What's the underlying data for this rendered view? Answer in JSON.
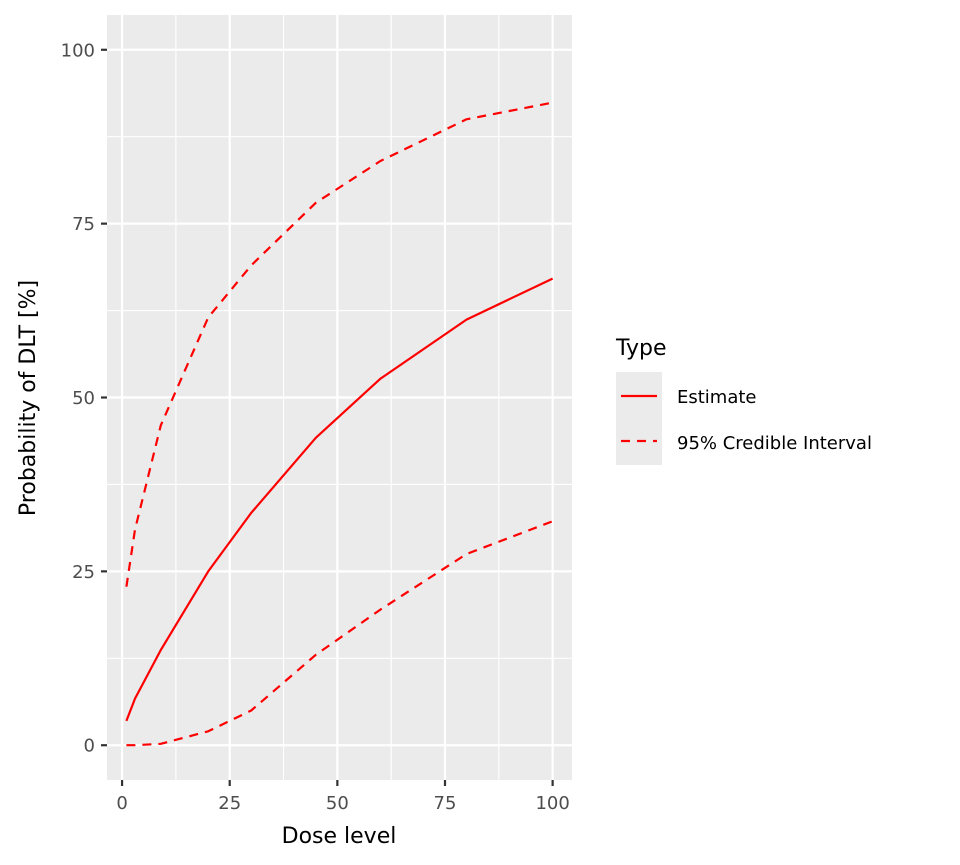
{
  "chart_data": {
    "type": "line",
    "title": "",
    "xlabel": "Dose level",
    "ylabel": "Probability of DLT [%]",
    "xlim": [
      -3.5,
      104.5
    ],
    "ylim": [
      -5,
      105
    ],
    "x_ticks": [
      0,
      25,
      50,
      75,
      100
    ],
    "x_tick_labels": [
      "0",
      "25",
      "50",
      "75",
      "100"
    ],
    "y_ticks": [
      0,
      25,
      50,
      75,
      100
    ],
    "y_tick_labels": [
      "0",
      "25",
      "50",
      "75",
      "100"
    ],
    "grid": true,
    "legend_position": "right",
    "legend_title": "Type",
    "x": [
      1,
      3,
      9,
      20,
      30,
      45,
      60,
      80,
      100
    ],
    "series": [
      {
        "name": "Estimate",
        "linetype": "solid",
        "color": "#ff0000",
        "values": [
          3.5,
          6.7,
          13.7,
          25.0,
          33.4,
          44.2,
          52.7,
          61.2,
          67.1
        ]
      },
      {
        "name": "95% Credible Interval",
        "linetype": "dashed",
        "color": "#ff0000",
        "bound": "upper",
        "values": [
          22.8,
          31.0,
          46.0,
          61.5,
          69.0,
          78.0,
          84.0,
          90.0,
          92.4
        ]
      },
      {
        "name": "95% Credible Interval",
        "linetype": "dashed",
        "color": "#ff0000",
        "bound": "lower",
        "values": [
          0.0,
          0.0,
          0.2,
          2.0,
          5.0,
          13.0,
          19.5,
          27.5,
          32.2
        ]
      }
    ]
  },
  "legend": {
    "title": "Type",
    "items": [
      {
        "label": "Estimate",
        "linetype": "solid"
      },
      {
        "label": "95% Credible Interval",
        "linetype": "dashed"
      }
    ]
  },
  "colors": {
    "panel": "#ebebeb",
    "grid": "#ffffff",
    "line": "#ff0000"
  }
}
